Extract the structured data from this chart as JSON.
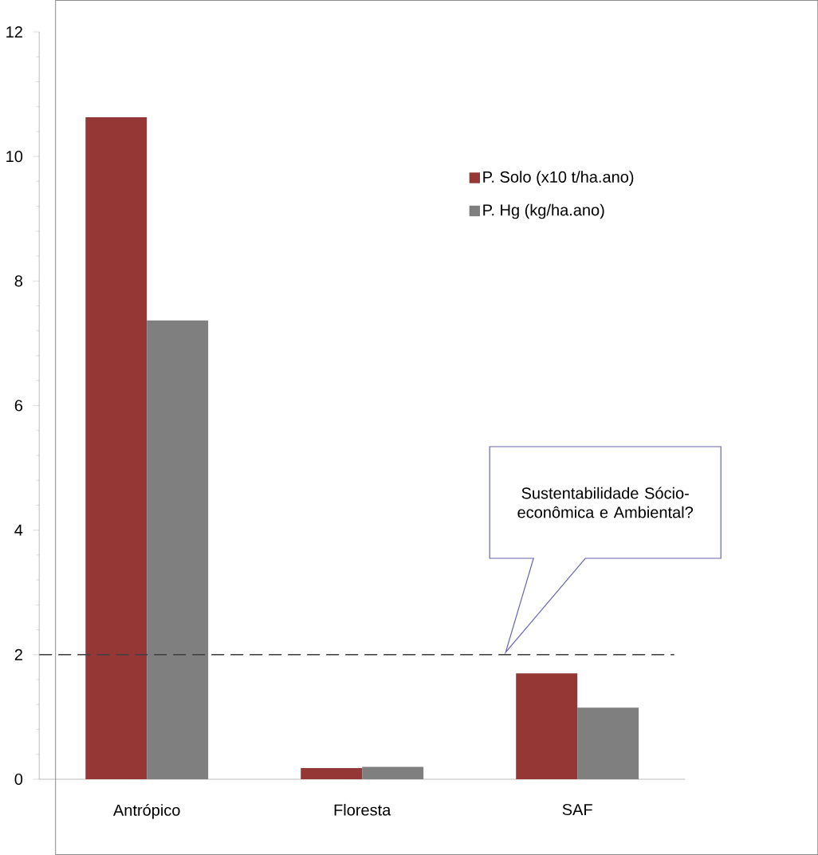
{
  "chart_data": {
    "type": "bar",
    "categories": [
      "Antrópico",
      "Floresta",
      "SAF"
    ],
    "series": [
      {
        "name": "P. Solo (x10 t/ha.ano)",
        "color": "#953735",
        "values": [
          10.63,
          0.18,
          1.7
        ]
      },
      {
        "name": "P. Hg (kg/ha.ano)",
        "color": "#7f7f7f",
        "values": [
          7.37,
          0.2,
          1.15
        ]
      }
    ],
    "ylim": [
      0,
      12
    ],
    "yticks": [
      0,
      2,
      4,
      6,
      8,
      10,
      12
    ],
    "legend": "top right",
    "ref_lines": [
      {
        "axis": "y",
        "value": 2,
        "color": "#404040",
        "line_style": "dashed"
      }
    ],
    "annotations": [
      "Sustentabilidade Sócio-econômica e Ambiental?"
    ]
  }
}
